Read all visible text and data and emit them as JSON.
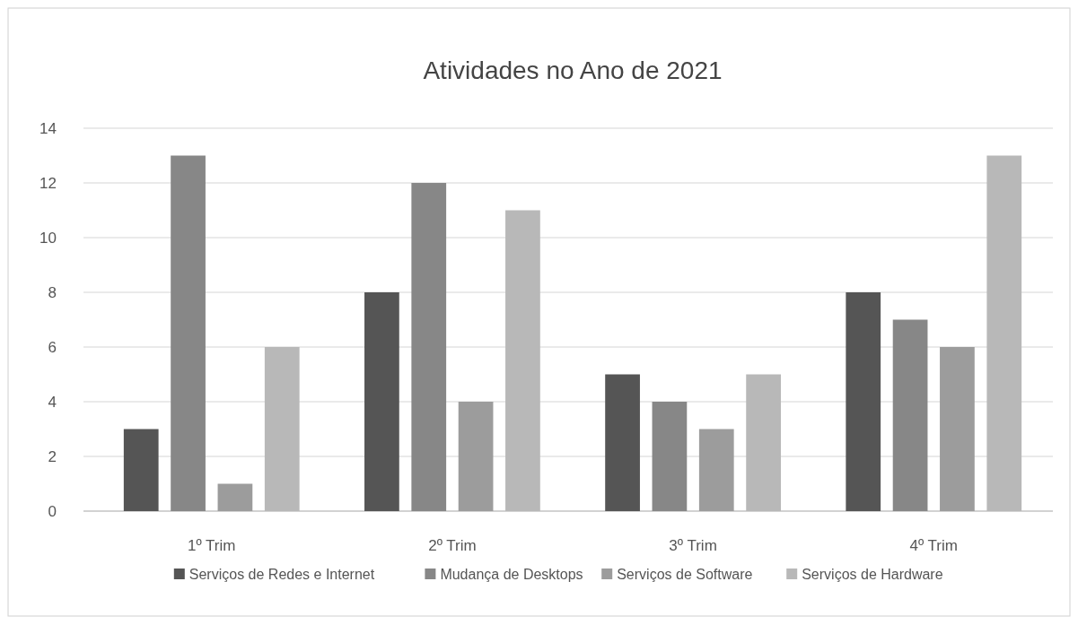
{
  "chart_data": {
    "type": "bar",
    "title": "Atividades no Ano de 2021",
    "categories": [
      "1º Trim",
      "2º Trim",
      "3º Trim",
      "4º Trim"
    ],
    "series": [
      {
        "name": "Serviços de Redes e Internet",
        "color": "#555555",
        "values": [
          3,
          8,
          5,
          8
        ]
      },
      {
        "name": "Mudança de Desktops",
        "color": "#878787",
        "values": [
          13,
          12,
          4,
          7
        ]
      },
      {
        "name": "Serviços de Software",
        "color": "#9c9c9c",
        "values": [
          1,
          4,
          3,
          6
        ]
      },
      {
        "name": "Serviços de Hardware",
        "color": "#b8b8b8",
        "values": [
          6,
          11,
          5,
          13
        ]
      }
    ],
    "ylim": [
      0,
      14
    ],
    "yticks": [
      0,
      2,
      4,
      6,
      8,
      10,
      12,
      14
    ],
    "grid": "y",
    "legend": "bottom"
  }
}
